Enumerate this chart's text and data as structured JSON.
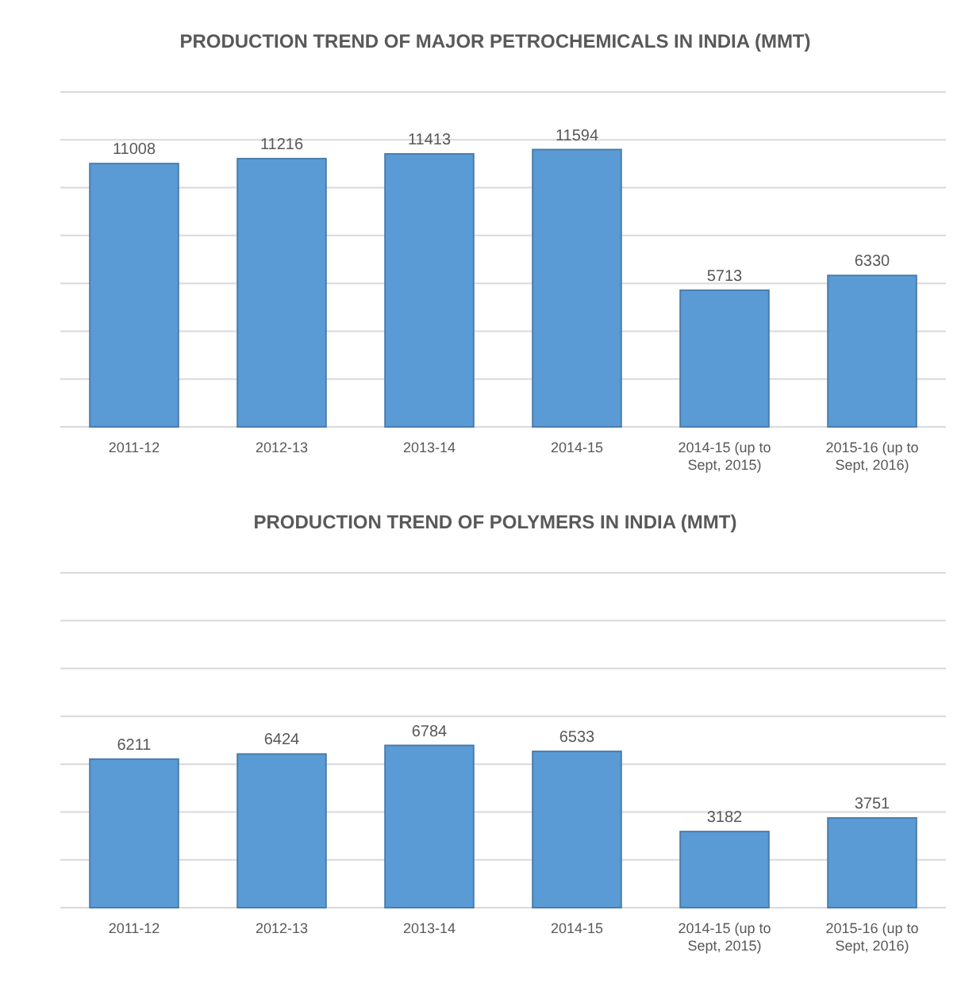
{
  "chart_data": [
    {
      "type": "bar",
      "title": "PRODUCTION TREND OF MAJOR PETROCHEMICALS IN INDIA (MMT)",
      "categories": [
        "2011-12",
        "2012-13",
        "2013-14",
        "2014-15",
        "2014-15 (up to Sept, 2015)",
        "2015-16 (up to Sept, 2016)"
      ],
      "values": [
        11008,
        11216,
        11413,
        11594,
        5713,
        6330
      ],
      "color": "#5b9bd5",
      "data_labels": true,
      "ylim": [
        0,
        14000
      ],
      "yticks": [
        {
          "value": 0,
          "label": null
        },
        {
          "value": 2000,
          "label": null
        },
        {
          "value": 4000,
          "label": null
        },
        {
          "value": 6000,
          "label": null
        },
        {
          "value": 8000,
          "label": null
        },
        {
          "value": 10000,
          "label": null
        },
        {
          "value": 12000,
          "label": null
        },
        {
          "value": 14000,
          "label": null
        }
      ],
      "grid": "y",
      "tick_labels": "x"
    },
    {
      "type": "bar",
      "title": "PRODUCTION TREND OF POLYMERS IN INDIA (MMT)",
      "categories": [
        "2011-12",
        "2012-13",
        "2013-14",
        "2014-15",
        "2014-15 (up to Sept, 2015)",
        "2015-16 (up to Sept, 2016)"
      ],
      "values": [
        6211,
        6424,
        6784,
        6533,
        3182,
        3751
      ],
      "color": "#5b9bd5",
      "data_labels": true,
      "ylim": [
        0,
        14000
      ],
      "yticks": [
        {
          "value": 0,
          "label": null
        },
        {
          "value": 2000,
          "label": null
        },
        {
          "value": 4000,
          "label": null
        },
        {
          "value": 6000,
          "label": null
        },
        {
          "value": 8000,
          "label": null
        },
        {
          "value": 10000,
          "label": null
        },
        {
          "value": 12000,
          "label": null
        },
        {
          "value": 14000,
          "label": null
        }
      ],
      "grid": "y",
      "tick_labels": "x"
    }
  ]
}
